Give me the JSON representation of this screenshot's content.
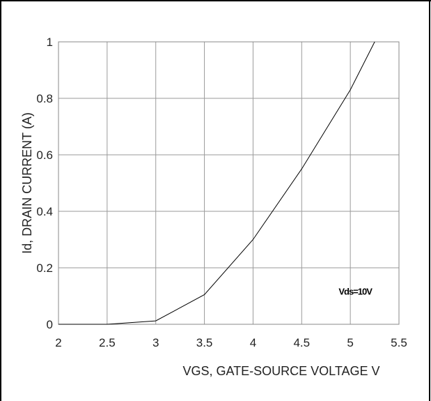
{
  "chart_data": {
    "type": "line",
    "xlabel": "VGS, GATE-SOURCE VOLTAGE  V",
    "ylabel": "Id, DRAIN CURRENT (A)",
    "xlim": [
      2,
      5.5
    ],
    "ylim": [
      0,
      1
    ],
    "x_ticks": [
      "2",
      "2.5",
      "3",
      "3.5",
      "4",
      "4.5",
      "5",
      "5.5"
    ],
    "y_ticks": [
      "0",
      "0.2",
      "0.4",
      "0.6",
      "0.8",
      "1"
    ],
    "grid": true,
    "series": [
      {
        "x": [
          2.0,
          2.5,
          3.0,
          3.5,
          4.0,
          4.5,
          5.0,
          5.25
        ],
        "y": [
          0.0,
          0.0,
          0.012,
          0.105,
          0.3,
          0.55,
          0.83,
          1.0
        ],
        "color": "#000000"
      }
    ],
    "annotation": {
      "text": "Vds=10V",
      "x": 5.05,
      "y": 0.115
    }
  }
}
